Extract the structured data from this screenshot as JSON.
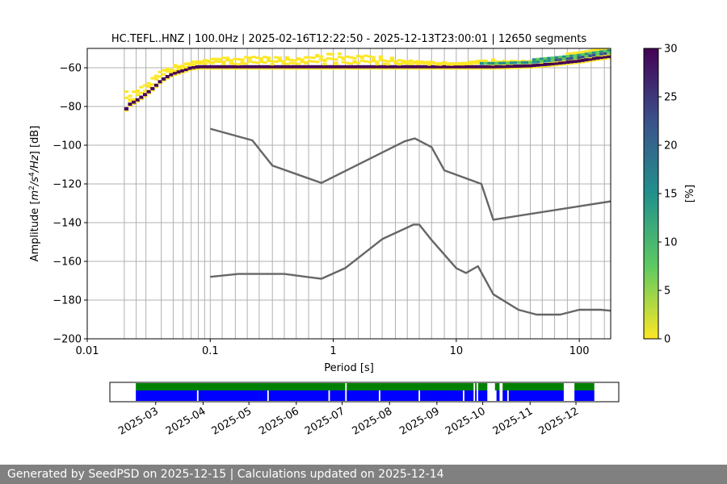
{
  "chart_data": [
    {
      "type": "heatmap",
      "title": "HC.TEFL..HNZ | 100.0Hz | 2025-02-16T12:22:50 - 2025-12-13T23:00:01 | 12650 segments",
      "xlabel": "Period [s]",
      "ylabel": {
        "main": "Amplitude [",
        "m": "m",
        "exp2": "2",
        "s": "/s",
        "exp4": "4",
        "hz": "/Hz",
        "db": "] [dB]"
      },
      "x_scale": "log",
      "xlim": [
        0.01,
        180
      ],
      "ylim": [
        -200,
        -50
      ],
      "x_ticks": [
        {
          "value": 0.01,
          "label": "0.01"
        },
        {
          "value": 0.1,
          "label": "0.1"
        },
        {
          "value": 1,
          "label": "1"
        },
        {
          "value": 10,
          "label": "10"
        },
        {
          "value": 100,
          "label": "100"
        }
      ],
      "y_ticks": [
        {
          "value": -60,
          "label": "−60"
        },
        {
          "value": -80,
          "label": "−80"
        },
        {
          "value": -100,
          "label": "−100"
        },
        {
          "value": -120,
          "label": "−120"
        },
        {
          "value": -140,
          "label": "−140"
        },
        {
          "value": -160,
          "label": "−160"
        },
        {
          "value": -180,
          "label": "−180"
        },
        {
          "value": -200,
          "label": "−200"
        }
      ],
      "grid_periods": [
        0.02,
        0.025,
        0.03,
        0.04,
        0.05,
        0.06,
        0.07,
        0.08,
        0.09,
        0.1,
        0.125,
        0.16,
        0.2,
        0.25,
        0.32,
        0.4,
        0.5,
        0.63,
        0.8,
        1,
        1.25,
        1.6,
        2,
        2.5,
        3.2,
        4,
        5,
        6.3,
        8,
        10,
        12.5,
        16,
        20,
        25,
        32,
        40,
        50,
        63,
        80,
        100,
        125,
        160
      ],
      "horizontal_grid": true,
      "series": [
        {
          "values": [
            [
              0.1,
              -91.5
            ],
            [
              0.22,
              -97.5
            ],
            [
              0.32,
              -110.5
            ],
            [
              0.8,
              -119.5
            ],
            [
              3.8,
              -98
            ],
            [
              4.6,
              -96.5
            ],
            [
              6.3,
              -101
            ],
            [
              8,
              -113
            ],
            [
              16,
              -120
            ],
            [
              20,
              -138.5
            ],
            [
              180,
              -129
            ]
          ]
        },
        {
          "values": [
            [
              0.1,
              -168
            ],
            [
              0.17,
              -166.5
            ],
            [
              0.4,
              -166.5
            ],
            [
              0.8,
              -169
            ],
            [
              1.25,
              -163.5
            ],
            [
              2.5,
              -148.5
            ],
            [
              4.5,
              -141
            ],
            [
              5,
              -141
            ],
            [
              6.3,
              -149
            ],
            [
              10,
              -163.5
            ],
            [
              12,
              -166
            ],
            [
              15,
              -162.5
            ],
            [
              20,
              -177
            ],
            [
              32,
              -185
            ],
            [
              45,
              -187.5
            ],
            [
              70,
              -187.5
            ],
            [
              100,
              -185
            ],
            [
              150,
              -185
            ],
            [
              180,
              -185.5
            ]
          ]
        }
      ],
      "psd_mode": [
        [
          0.02,
          -82.5
        ],
        [
          0.022,
          -79
        ],
        [
          0.025,
          -77
        ],
        [
          0.03,
          -73.5
        ],
        [
          0.035,
          -70
        ],
        [
          0.04,
          -66.5
        ],
        [
          0.045,
          -64.5
        ],
        [
          0.05,
          -63
        ],
        [
          0.06,
          -61.5
        ],
        [
          0.07,
          -60
        ],
        [
          0.08,
          -59.5
        ],
        [
          0.1,
          -59.5
        ],
        [
          0.2,
          -59.5
        ],
        [
          1,
          -59.5
        ],
        [
          10,
          -59.5
        ],
        [
          20,
          -59.5
        ],
        [
          40,
          -59
        ],
        [
          60,
          -58
        ],
        [
          100,
          -56.5
        ],
        [
          140,
          -55
        ],
        [
          180,
          -54
        ]
      ],
      "psd_spread": [
        [
          0.02,
          -72
        ],
        [
          0.025,
          -70
        ],
        [
          0.03,
          -67
        ],
        [
          0.04,
          -61
        ],
        [
          0.05,
          -58
        ],
        [
          0.07,
          -56
        ],
        [
          0.1,
          -55
        ],
        [
          0.2,
          -53
        ],
        [
          0.3,
          -54
        ],
        [
          0.5,
          -54
        ],
        [
          1,
          -52
        ],
        [
          2,
          -53
        ],
        [
          5,
          -56
        ],
        [
          10,
          -57
        ],
        [
          20,
          -55
        ],
        [
          40,
          -56
        ],
        [
          80,
          -54
        ],
        [
          120,
          -53
        ],
        [
          180,
          -52
        ]
      ],
      "colorbar": {
        "label": "[%]",
        "range": [
          0,
          30
        ],
        "ticks": [
          {
            "value": 0,
            "label": "0"
          },
          {
            "value": 5,
            "label": "5"
          },
          {
            "value": 10,
            "label": "10"
          },
          {
            "value": 15,
            "label": "15"
          },
          {
            "value": 20,
            "label": "20"
          },
          {
            "value": 25,
            "label": "25"
          },
          {
            "value": 30,
            "label": "30"
          }
        ],
        "colors": [
          "#fde725",
          "#5ec962",
          "#21918c",
          "#3b528b",
          "#440154"
        ]
      }
    },
    {
      "type": "timeline",
      "start": "2025-02-16",
      "end": "2025-12-13",
      "view_start": "2025-01-30",
      "view_end": "2025-12-29",
      "month_ticks": [
        {
          "date": "2025-03-01",
          "label": "2025-03"
        },
        {
          "date": "2025-04-01",
          "label": "2025-04"
        },
        {
          "date": "2025-05-01",
          "label": "2025-05"
        },
        {
          "date": "2025-06-01",
          "label": "2025-06"
        },
        {
          "date": "2025-07-01",
          "label": "2025-07"
        },
        {
          "date": "2025-08-01",
          "label": "2025-08"
        },
        {
          "date": "2025-09-01",
          "label": "2025-09"
        },
        {
          "date": "2025-10-01",
          "label": "2025-10"
        },
        {
          "date": "2025-11-01",
          "label": "2025-11"
        },
        {
          "date": "2025-12-01",
          "label": "2025-12"
        }
      ],
      "available_ranges": [
        [
          "2025-02-16",
          "2025-07-03"
        ],
        [
          "2025-07-04",
          "2025-09-25"
        ],
        [
          "2025-09-26",
          "2025-09-27"
        ],
        [
          "2025-09-28",
          "2025-10-04"
        ],
        [
          "2025-10-09",
          "2025-10-12"
        ],
        [
          "2025-10-14",
          "2025-11-23"
        ],
        [
          "2025-11-30",
          "2025-12-13"
        ]
      ],
      "used_ranges": [
        [
          "2025-02-16",
          "2025-03-28"
        ],
        [
          "2025-03-29",
          "2025-05-13"
        ],
        [
          "2025-05-14",
          "2025-06-22"
        ],
        [
          "2025-06-23",
          "2025-07-03"
        ],
        [
          "2025-07-04",
          "2025-07-25"
        ],
        [
          "2025-07-26",
          "2025-08-20"
        ],
        [
          "2025-08-21",
          "2025-09-18"
        ],
        [
          "2025-09-19",
          "2025-09-25"
        ],
        [
          "2025-09-26",
          "2025-09-27"
        ],
        [
          "2025-09-28",
          "2025-10-04"
        ],
        [
          "2025-10-10",
          "2025-10-12"
        ],
        [
          "2025-10-14",
          "2025-10-17"
        ],
        [
          "2025-10-18",
          "2025-11-23"
        ],
        [
          "2025-11-30",
          "2025-12-13"
        ]
      ],
      "colors": {
        "available": "#008000",
        "used": "#0000ff"
      }
    }
  ],
  "footer": {
    "text": "Generated by SeedPSD on 2025-12-15 | Calculations updated on 2025-12-14"
  }
}
